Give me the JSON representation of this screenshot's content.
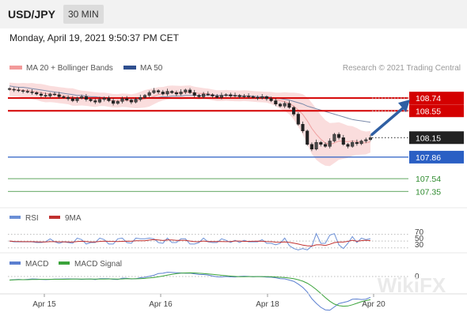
{
  "header": {
    "symbol": "USD/JPY",
    "interval": "30 MIN",
    "datetime": "Monday, April 19, 2021 9:50:37 PM CET"
  },
  "legend": {
    "ma20_bb": "MA 20 + Bollinger Bands",
    "ma50": "MA 50",
    "copyright": "Research © 2021 Trading Central"
  },
  "colors": {
    "resistance": "#d40000",
    "support": "#2a5fc4",
    "target_green": "#2e8b2e",
    "current": "#222222",
    "bollinger": "#f7c6c6",
    "ma50": "#7a8aaa",
    "arrow": "#2f5fa3",
    "rsi": "#6b8fd6",
    "rsi_ma": "#c0302f",
    "macd": "#5b7fd0",
    "macd_signal": "#3aa33a"
  },
  "price_levels": [
    {
      "label": "108.74",
      "value": 108.74,
      "kind": "resistance"
    },
    {
      "label": "108.55",
      "value": 108.55,
      "kind": "resistance"
    },
    {
      "label": "108.15",
      "value": 108.15,
      "kind": "current"
    },
    {
      "label": "107.86",
      "value": 107.86,
      "kind": "support"
    },
    {
      "label": "107.54",
      "value": 107.54,
      "kind": "target"
    },
    {
      "label": "107.35",
      "value": 107.35,
      "kind": "target"
    }
  ],
  "chart_data": {
    "type": "candlestick",
    "instrument": "USD/JPY",
    "timeframe": "30 MIN",
    "x_ticks": [
      "Apr 15",
      "Apr 16",
      "Apr 18",
      "Apr 20"
    ],
    "y_range": [
      107.2,
      109.0
    ],
    "closes": [
      108.87,
      108.86,
      108.85,
      108.84,
      108.83,
      108.82,
      108.8,
      108.78,
      108.77,
      108.8,
      108.79,
      108.76,
      108.75,
      108.73,
      108.7,
      108.74,
      108.76,
      108.72,
      108.7,
      108.68,
      108.72,
      108.74,
      108.7,
      108.66,
      108.69,
      108.73,
      108.71,
      108.68,
      108.72,
      108.75,
      108.78,
      108.82,
      108.85,
      108.83,
      108.8,
      108.84,
      108.82,
      108.8,
      108.83,
      108.86,
      108.82,
      108.78,
      108.76,
      108.8,
      108.79,
      108.77,
      108.75,
      108.78,
      108.79,
      108.77,
      108.78,
      108.76,
      108.77,
      108.76,
      108.75,
      108.74,
      108.76,
      108.73,
      108.7,
      108.65,
      108.62,
      108.66,
      108.6,
      108.5,
      108.35,
      108.25,
      108.05,
      107.98,
      108.08,
      108.05,
      108.02,
      108.1,
      108.2,
      108.15,
      108.05,
      108.02,
      108.08,
      108.06,
      108.1,
      108.12,
      108.15
    ],
    "ma50": [
      108.92,
      108.91,
      108.9,
      108.9,
      108.89,
      108.88,
      108.87,
      108.86,
      108.85,
      108.84,
      108.83,
      108.82,
      108.81,
      108.8,
      108.79,
      108.78,
      108.78,
      108.77,
      108.76,
      108.76,
      108.75,
      108.75,
      108.74,
      108.74,
      108.74,
      108.73,
      108.73,
      108.73,
      108.73,
      108.73,
      108.74,
      108.74,
      108.75,
      108.75,
      108.76,
      108.76,
      108.77,
      108.77,
      108.77,
      108.78,
      108.78,
      108.78,
      108.78,
      108.78,
      108.78,
      108.78,
      108.78,
      108.78,
      108.78,
      108.78,
      108.78,
      108.77,
      108.77,
      108.77,
      108.77,
      108.76,
      108.76,
      108.76,
      108.75,
      108.74,
      108.73,
      108.72,
      108.71,
      108.69,
      108.67,
      108.65,
      108.62,
      108.6,
      108.58,
      108.56,
      108.54,
      108.52,
      108.5,
      108.48,
      108.46,
      108.44,
      108.42,
      108.41,
      108.4,
      108.39,
      108.38
    ],
    "bb_upper_offset": [
      0.1,
      0.1,
      0.1,
      0.11,
      0.11,
      0.12,
      0.12,
      0.13,
      0.13,
      0.12,
      0.12,
      0.12,
      0.12,
      0.12,
      0.13,
      0.12,
      0.11,
      0.11,
      0.11,
      0.11,
      0.1,
      0.1,
      0.1,
      0.1,
      0.1,
      0.1,
      0.1,
      0.1,
      0.11,
      0.12,
      0.13,
      0.13,
      0.12,
      0.11,
      0.1,
      0.1,
      0.1,
      0.1,
      0.1,
      0.1,
      0.1,
      0.09,
      0.09,
      0.08,
      0.08,
      0.08,
      0.08,
      0.08,
      0.08,
      0.08,
      0.08,
      0.08,
      0.08,
      0.08,
      0.08,
      0.08,
      0.08,
      0.08,
      0.09,
      0.1,
      0.12,
      0.14,
      0.16,
      0.2,
      0.25,
      0.3,
      0.35,
      0.38,
      0.38,
      0.36,
      0.34,
      0.32,
      0.3,
      0.28,
      0.26,
      0.24,
      0.22,
      0.2,
      0.18,
      0.17,
      0.16
    ],
    "rsi": {
      "levels": [
        70,
        50,
        30
      ]
    },
    "macd": {
      "zero_label": "0"
    }
  },
  "panels": {
    "rsi_label": "RSI",
    "rsi_ma_label": "9MA",
    "rsi_levels": [
      "70",
      "50",
      "30"
    ],
    "macd_label": "MACD",
    "macd_signal_label": "MACD Signal",
    "macd_zero": "0"
  },
  "watermark": "WikiFX"
}
